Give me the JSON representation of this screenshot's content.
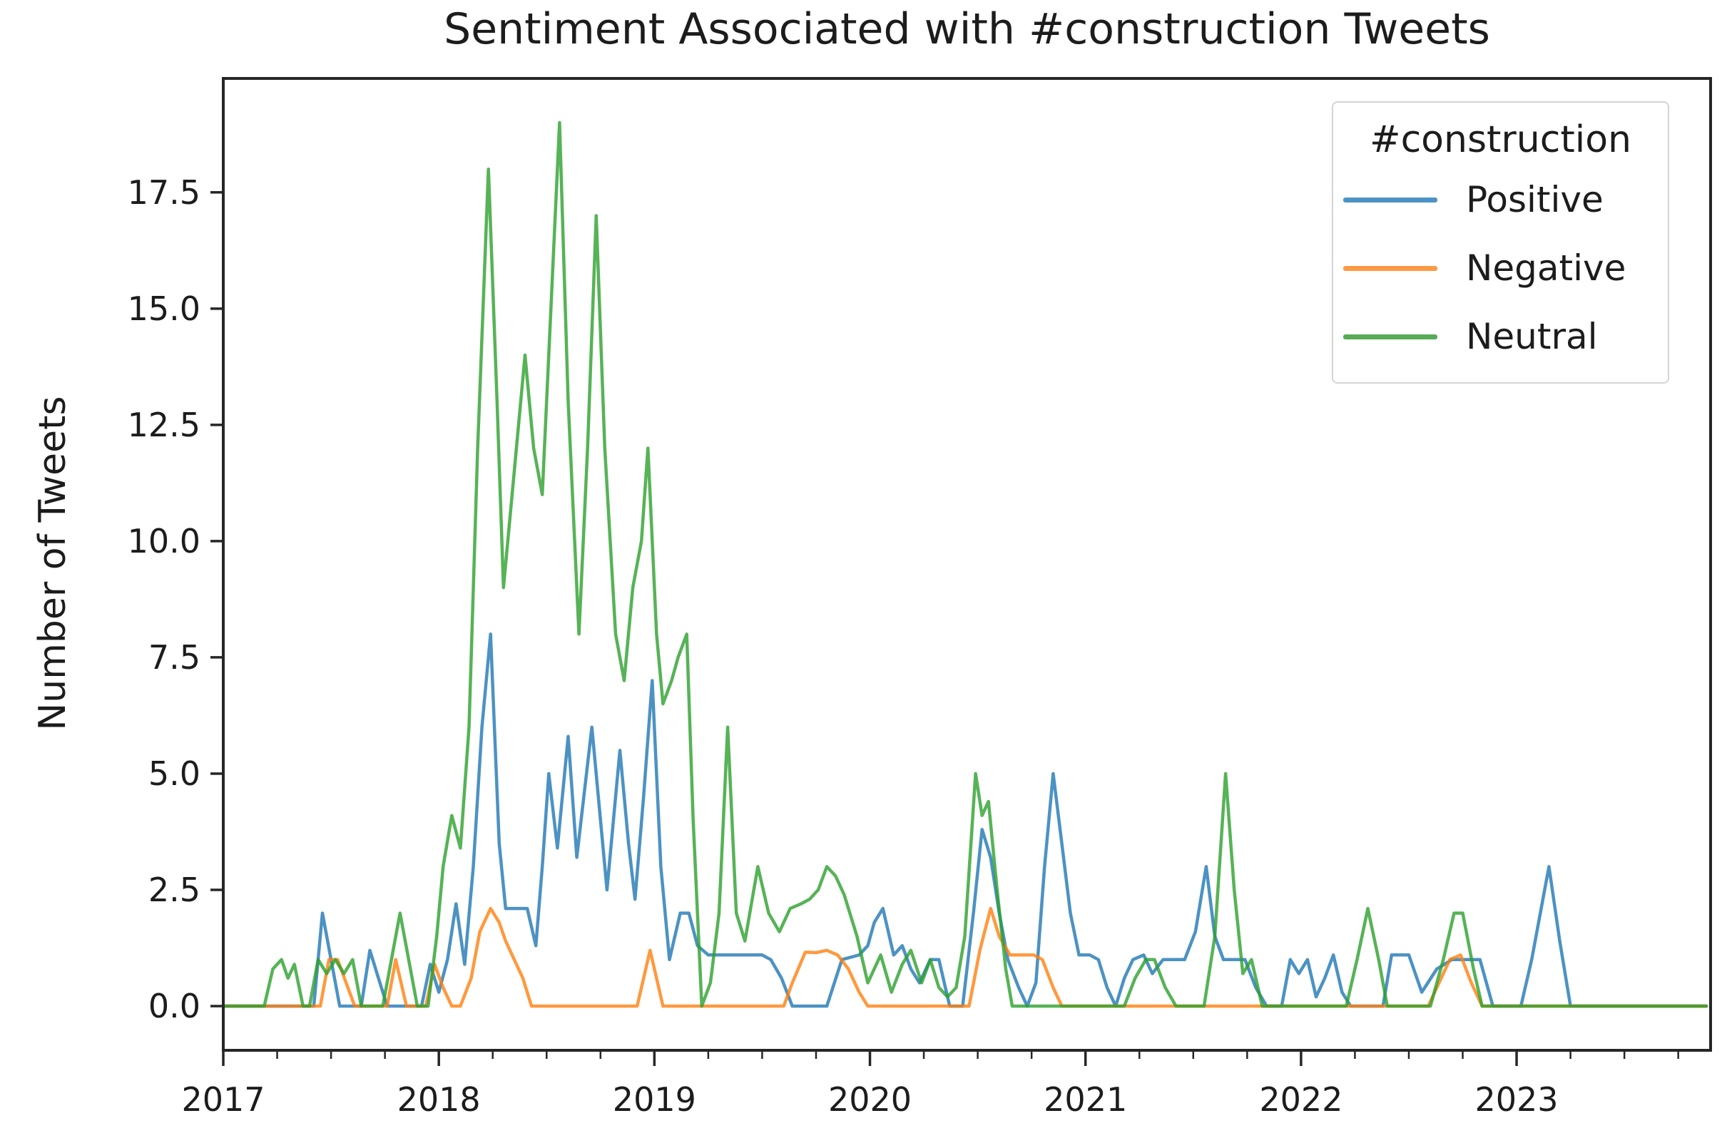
{
  "figure": {
    "title": "Sentiment Associated with #construction Tweets",
    "ylabel": "Number of Tweets"
  },
  "legend": {
    "title": "#construction",
    "entries": [
      {
        "label": "Positive",
        "color": "#4d92c5"
      },
      {
        "label": "Negative",
        "color": "#ff9944"
      },
      {
        "label": "Neutral",
        "color": "#57ab57"
      }
    ]
  },
  "chart_data": {
    "type": "line",
    "title": "Sentiment Associated with #construction Tweets",
    "xlabel": "",
    "ylabel": "Number of Tweets",
    "grid": false,
    "legend_position": "upper right",
    "xlim": [
      2017.0,
      2023.9
    ],
    "ylim": [
      -0.95,
      19.95
    ],
    "xticks_major": [
      2017,
      2018,
      2019,
      2020,
      2021,
      2022,
      2023
    ],
    "xticks_minor_step": 0.25,
    "yticks": [
      0.0,
      2.5,
      5.0,
      7.5,
      10.0,
      12.5,
      15.0,
      17.5
    ],
    "ytick_labels": [
      "0.0",
      "2.5",
      "5.0",
      "7.5",
      "10.0",
      "12.5",
      "15.0",
      "17.5"
    ],
    "axis_color": "#262626",
    "series": [
      {
        "name": "Positive",
        "color": "#1f77b4",
        "opacity": 0.8,
        "points": [
          [
            2017.0,
            0
          ],
          [
            2017.42,
            0
          ],
          [
            2017.46,
            2
          ],
          [
            2017.5,
            1
          ],
          [
            2017.54,
            0
          ],
          [
            2017.64,
            0
          ],
          [
            2017.68,
            1.2
          ],
          [
            2017.72,
            0.6
          ],
          [
            2017.76,
            0
          ],
          [
            2017.92,
            0
          ],
          [
            2017.96,
            0.9
          ],
          [
            2018.0,
            0.3
          ],
          [
            2018.04,
            1
          ],
          [
            2018.08,
            2.2
          ],
          [
            2018.12,
            0.9
          ],
          [
            2018.16,
            3
          ],
          [
            2018.2,
            6
          ],
          [
            2018.24,
            8
          ],
          [
            2018.28,
            3.5
          ],
          [
            2018.31,
            2.1
          ],
          [
            2018.36,
            2.1
          ],
          [
            2018.41,
            2.1
          ],
          [
            2018.45,
            1.3
          ],
          [
            2018.48,
            3
          ],
          [
            2018.51,
            5
          ],
          [
            2018.55,
            3.4
          ],
          [
            2018.6,
            5.8
          ],
          [
            2018.64,
            3.2
          ],
          [
            2018.71,
            6
          ],
          [
            2018.78,
            2.5
          ],
          [
            2018.84,
            5.5
          ],
          [
            2018.88,
            3.5
          ],
          [
            2018.91,
            2.3
          ],
          [
            2018.95,
            4.5
          ],
          [
            2018.99,
            7
          ],
          [
            2019.03,
            3
          ],
          [
            2019.07,
            1
          ],
          [
            2019.12,
            2
          ],
          [
            2019.16,
            2
          ],
          [
            2019.2,
            1.3
          ],
          [
            2019.25,
            1.1
          ],
          [
            2019.44,
            1.1
          ],
          [
            2019.5,
            1.1
          ],
          [
            2019.54,
            1
          ],
          [
            2019.59,
            0.6
          ],
          [
            2019.64,
            0
          ],
          [
            2019.8,
            0
          ],
          [
            2019.87,
            1
          ],
          [
            2019.91,
            1.05
          ],
          [
            2019.95,
            1.1
          ],
          [
            2019.99,
            1.3
          ],
          [
            2020.02,
            1.8
          ],
          [
            2020.06,
            2.1
          ],
          [
            2020.11,
            1.1
          ],
          [
            2020.15,
            1.3
          ],
          [
            2020.19,
            0.8
          ],
          [
            2020.23,
            0.5
          ],
          [
            2020.28,
            1
          ],
          [
            2020.32,
            1
          ],
          [
            2020.37,
            0
          ],
          [
            2020.43,
            0
          ],
          [
            2020.48,
            2
          ],
          [
            2020.52,
            3.8
          ],
          [
            2020.56,
            3.2
          ],
          [
            2020.6,
            2
          ],
          [
            2020.64,
            1
          ],
          [
            2020.69,
            0.4
          ],
          [
            2020.73,
            0
          ],
          [
            2020.77,
            0.5
          ],
          [
            2020.81,
            3
          ],
          [
            2020.85,
            5
          ],
          [
            2020.89,
            3.5
          ],
          [
            2020.93,
            2
          ],
          [
            2020.97,
            1.1
          ],
          [
            2021.02,
            1.1
          ],
          [
            2021.06,
            1
          ],
          [
            2021.1,
            0.4
          ],
          [
            2021.14,
            0
          ],
          [
            2021.18,
            0.6
          ],
          [
            2021.22,
            1
          ],
          [
            2021.27,
            1.1
          ],
          [
            2021.31,
            0.7
          ],
          [
            2021.36,
            1
          ],
          [
            2021.41,
            1
          ],
          [
            2021.46,
            1
          ],
          [
            2021.51,
            1.6
          ],
          [
            2021.56,
            3
          ],
          [
            2021.6,
            1.5
          ],
          [
            2021.64,
            1
          ],
          [
            2021.69,
            1
          ],
          [
            2021.74,
            1
          ],
          [
            2021.79,
            0.4
          ],
          [
            2021.84,
            0
          ],
          [
            2021.91,
            0
          ],
          [
            2021.95,
            1
          ],
          [
            2021.99,
            0.7
          ],
          [
            2022.03,
            1
          ],
          [
            2022.07,
            0.2
          ],
          [
            2022.11,
            0.6
          ],
          [
            2022.15,
            1.1
          ],
          [
            2022.19,
            0.3
          ],
          [
            2022.23,
            0
          ],
          [
            2022.38,
            0
          ],
          [
            2022.42,
            1.1
          ],
          [
            2022.5,
            1.1
          ],
          [
            2022.56,
            0.3
          ],
          [
            2022.63,
            0.8
          ],
          [
            2022.7,
            1
          ],
          [
            2022.77,
            1
          ],
          [
            2022.83,
            1
          ],
          [
            2022.89,
            0
          ],
          [
            2023.02,
            0
          ],
          [
            2023.07,
            1
          ],
          [
            2023.11,
            2
          ],
          [
            2023.15,
            3
          ],
          [
            2023.2,
            1.4
          ],
          [
            2023.25,
            0
          ],
          [
            2023.88,
            0
          ]
        ]
      },
      {
        "name": "Negative",
        "color": "#ff7f0e",
        "opacity": 0.8,
        "points": [
          [
            2017.0,
            0
          ],
          [
            2017.45,
            0
          ],
          [
            2017.49,
            1
          ],
          [
            2017.53,
            1
          ],
          [
            2017.57,
            0.5
          ],
          [
            2017.61,
            0
          ],
          [
            2017.76,
            0
          ],
          [
            2017.8,
            1
          ],
          [
            2017.85,
            0
          ],
          [
            2017.94,
            0
          ],
          [
            2017.98,
            0.9
          ],
          [
            2018.02,
            0.4
          ],
          [
            2018.06,
            0
          ],
          [
            2018.1,
            0
          ],
          [
            2018.15,
            0.6
          ],
          [
            2018.19,
            1.6
          ],
          [
            2018.24,
            2.1
          ],
          [
            2018.28,
            1.8
          ],
          [
            2018.31,
            1.4
          ],
          [
            2018.35,
            1
          ],
          [
            2018.39,
            0.6
          ],
          [
            2018.43,
            0
          ],
          [
            2018.92,
            0
          ],
          [
            2018.98,
            1.2
          ],
          [
            2019.04,
            0
          ],
          [
            2019.6,
            0
          ],
          [
            2019.64,
            0.5
          ],
          [
            2019.7,
            1.16
          ],
          [
            2019.75,
            1.15
          ],
          [
            2019.8,
            1.2
          ],
          [
            2019.85,
            1.1
          ],
          [
            2019.9,
            0.8
          ],
          [
            2019.95,
            0.3
          ],
          [
            2019.99,
            0
          ],
          [
            2020.46,
            0
          ],
          [
            2020.51,
            1.2
          ],
          [
            2020.56,
            2.1
          ],
          [
            2020.6,
            1.5
          ],
          [
            2020.65,
            1.1
          ],
          [
            2020.7,
            1.1
          ],
          [
            2020.76,
            1.1
          ],
          [
            2020.8,
            1
          ],
          [
            2020.85,
            0.4
          ],
          [
            2020.89,
            0
          ],
          [
            2022.59,
            0
          ],
          [
            2022.64,
            0.5
          ],
          [
            2022.69,
            1
          ],
          [
            2022.74,
            1.1
          ],
          [
            2022.79,
            0.5
          ],
          [
            2022.84,
            0
          ],
          [
            2023.88,
            0
          ]
        ]
      },
      {
        "name": "Neutral",
        "color": "#2ca02c",
        "opacity": 0.8,
        "points": [
          [
            2017.0,
            0
          ],
          [
            2017.19,
            0
          ],
          [
            2017.23,
            0.8
          ],
          [
            2017.27,
            1
          ],
          [
            2017.3,
            0.6
          ],
          [
            2017.33,
            0.9
          ],
          [
            2017.37,
            0
          ],
          [
            2017.4,
            0
          ],
          [
            2017.44,
            1
          ],
          [
            2017.48,
            0.7
          ],
          [
            2017.52,
            1
          ],
          [
            2017.56,
            0.7
          ],
          [
            2017.6,
            1
          ],
          [
            2017.64,
            0
          ],
          [
            2017.74,
            0
          ],
          [
            2017.78,
            1
          ],
          [
            2017.82,
            2
          ],
          [
            2017.86,
            1
          ],
          [
            2017.9,
            0
          ],
          [
            2017.95,
            0
          ],
          [
            2017.99,
            1.5
          ],
          [
            2018.02,
            3
          ],
          [
            2018.06,
            4.1
          ],
          [
            2018.1,
            3.4
          ],
          [
            2018.14,
            6
          ],
          [
            2018.18,
            12
          ],
          [
            2018.23,
            18
          ],
          [
            2018.27,
            13
          ],
          [
            2018.3,
            9
          ],
          [
            2018.34,
            11
          ],
          [
            2018.4,
            14
          ],
          [
            2018.44,
            12
          ],
          [
            2018.48,
            11
          ],
          [
            2018.52,
            15
          ],
          [
            2018.56,
            19
          ],
          [
            2018.6,
            13
          ],
          [
            2018.65,
            8
          ],
          [
            2018.69,
            12
          ],
          [
            2018.73,
            17
          ],
          [
            2018.77,
            12
          ],
          [
            2018.82,
            8
          ],
          [
            2018.86,
            7
          ],
          [
            2018.9,
            9
          ],
          [
            2018.94,
            10
          ],
          [
            2018.97,
            12
          ],
          [
            2019.01,
            8
          ],
          [
            2019.04,
            6.5
          ],
          [
            2019.08,
            7
          ],
          [
            2019.11,
            7.5
          ],
          [
            2019.15,
            8
          ],
          [
            2019.18,
            4
          ],
          [
            2019.22,
            0
          ],
          [
            2019.26,
            0.5
          ],
          [
            2019.3,
            2
          ],
          [
            2019.34,
            6
          ],
          [
            2019.38,
            2
          ],
          [
            2019.42,
            1.4
          ],
          [
            2019.48,
            3
          ],
          [
            2019.53,
            2
          ],
          [
            2019.58,
            1.6
          ],
          [
            2019.63,
            2.1
          ],
          [
            2019.68,
            2.2
          ],
          [
            2019.72,
            2.3
          ],
          [
            2019.76,
            2.5
          ],
          [
            2019.8,
            3
          ],
          [
            2019.84,
            2.8
          ],
          [
            2019.88,
            2.4
          ],
          [
            2019.94,
            1.5
          ],
          [
            2019.99,
            0.5
          ],
          [
            2020.05,
            1.1
          ],
          [
            2020.1,
            0.3
          ],
          [
            2020.15,
            0.9
          ],
          [
            2020.19,
            1.2
          ],
          [
            2020.24,
            0.5
          ],
          [
            2020.28,
            1
          ],
          [
            2020.32,
            0.4
          ],
          [
            2020.36,
            0.2
          ],
          [
            2020.4,
            0.4
          ],
          [
            2020.44,
            1.5
          ],
          [
            2020.49,
            5
          ],
          [
            2020.52,
            4.1
          ],
          [
            2020.55,
            4.4
          ],
          [
            2020.59,
            2.5
          ],
          [
            2020.63,
            0.8
          ],
          [
            2020.66,
            0
          ],
          [
            2021.18,
            0
          ],
          [
            2021.23,
            0.6
          ],
          [
            2021.28,
            1
          ],
          [
            2021.32,
            1
          ],
          [
            2021.37,
            0.4
          ],
          [
            2021.42,
            0
          ],
          [
            2021.55,
            0
          ],
          [
            2021.6,
            1.5
          ],
          [
            2021.65,
            5
          ],
          [
            2021.69,
            2.5
          ],
          [
            2021.73,
            0.7
          ],
          [
            2021.77,
            1
          ],
          [
            2021.82,
            0
          ],
          [
            2022.21,
            0
          ],
          [
            2022.26,
            1
          ],
          [
            2022.31,
            2.1
          ],
          [
            2022.36,
            1
          ],
          [
            2022.4,
            0
          ],
          [
            2022.6,
            0
          ],
          [
            2022.66,
            1
          ],
          [
            2022.71,
            2
          ],
          [
            2022.75,
            2
          ],
          [
            2022.8,
            0.8
          ],
          [
            2022.84,
            0
          ],
          [
            2023.88,
            0
          ]
        ]
      }
    ]
  }
}
